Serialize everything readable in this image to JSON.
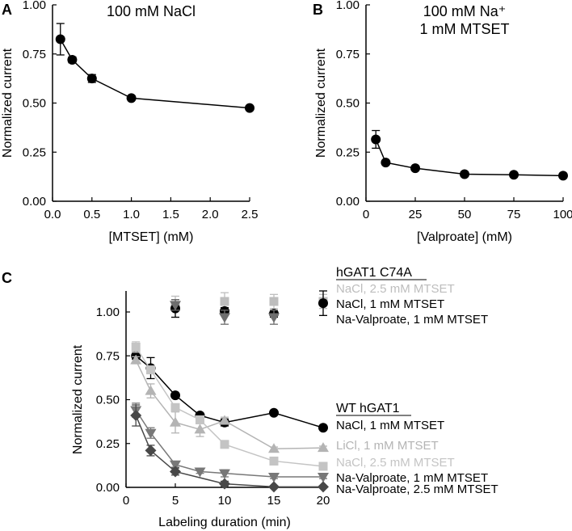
{
  "chart_data": [
    {
      "panel": "A",
      "type": "line",
      "title": "100 mM NaCl",
      "xlabel": "[MTSET] (mM)",
      "ylabel": "Normalized current",
      "xlim": [
        0,
        2.5
      ],
      "ylim": [
        0,
        1.0
      ],
      "xticks": [
        "0.0",
        "0.5",
        "1.0",
        "1.5",
        "2.0",
        "2.5"
      ],
      "xtick_values": [
        0,
        0.5,
        1.0,
        1.5,
        2.0,
        2.5
      ],
      "yticks": [
        "0.00",
        "0.25",
        "0.50",
        "0.75",
        "1.00"
      ],
      "ytick_values": [
        0,
        0.25,
        0.5,
        0.75,
        1.0
      ],
      "series": [
        {
          "name": "NaCl",
          "color": "#000000",
          "marker": "circle",
          "x": [
            0.1,
            0.25,
            0.5,
            1.0,
            2.5
          ],
          "y": [
            0.825,
            0.72,
            0.625,
            0.525,
            0.475
          ],
          "err": [
            0.08,
            0.015,
            0.02,
            0.01,
            0.01
          ]
        }
      ]
    },
    {
      "panel": "B",
      "type": "line",
      "title": "100 mM Na⁺",
      "subtitle": "1 mM MTSET",
      "xlabel": "[Valproate] (mM)",
      "ylabel": "Normalized current",
      "xlim": [
        0,
        100
      ],
      "ylim": [
        0,
        1.0
      ],
      "xticks": [
        "0",
        "25",
        "50",
        "75",
        "100"
      ],
      "xtick_values": [
        0,
        25,
        50,
        75,
        100
      ],
      "yticks": [
        "0.00",
        "0.25",
        "0.50",
        "0.75",
        "1.00"
      ],
      "ytick_values": [
        0,
        0.25,
        0.5,
        0.75,
        1.0
      ],
      "series": [
        {
          "name": "Valproate",
          "color": "#000000",
          "marker": "circle",
          "x": [
            5,
            10,
            25,
            50,
            75,
            100
          ],
          "y": [
            0.315,
            0.197,
            0.168,
            0.138,
            0.135,
            0.13
          ],
          "err": [
            0.045,
            0.01,
            0.01,
            0.008,
            0.01,
            0.012
          ]
        }
      ]
    },
    {
      "panel": "C",
      "type": "line",
      "xlabel": "Labeling duration (min)",
      "ylabel": "Normalized current",
      "xlim": [
        0,
        20
      ],
      "ylim": [
        0,
        1.12
      ],
      "xticks": [
        "0",
        "5",
        "10",
        "15",
        "20"
      ],
      "xtick_values": [
        0,
        5,
        10,
        15,
        20
      ],
      "yticks": [
        "0.00",
        "0.25",
        "0.50",
        "0.75",
        "1.00"
      ],
      "ytick_values": [
        0,
        0.25,
        0.5,
        0.75,
        1.0
      ],
      "legend_groups": [
        {
          "title": "hGAT1 C74A",
          "placement": "top-right",
          "series": [
            {
              "name": "NaCl, 2.5 mM MTSET",
              "color": "#bdbdbd",
              "marker": "square",
              "line": false,
              "x": [
                5,
                10,
                15,
                20
              ],
              "y": [
                1.03,
                1.06,
                1.06,
                1.06
              ],
              "err": [
                0.06,
                0.05,
                0.04,
                0.04
              ]
            },
            {
              "name": "NaCl, 1 mM MTSET",
              "color": "#000000",
              "marker": "circle",
              "line": false,
              "x": [
                5,
                10,
                15,
                20
              ],
              "y": [
                1.02,
                1.005,
                0.99,
                1.05
              ],
              "err": [
                0.05,
                0.02,
                0.02,
                0.07
              ]
            },
            {
              "name": "Na-Valproate, 1 mM MTSET",
              "color": "#6e6e6e",
              "marker": "triangle-down",
              "line": false,
              "x": [
                5,
                10,
                15
              ],
              "y": [
                1.04,
                0.97,
                0.97
              ],
              "err": [
                0.03,
                0.04,
                0.04
              ]
            }
          ]
        },
        {
          "title": "WT hGAT1",
          "placement": "right",
          "series": [
            {
              "name": "NaCl, 1 mM MTSET",
              "color": "#000000",
              "marker": "circle",
              "line": true,
              "x": [
                1,
                2.5,
                5,
                7.5,
                10,
                15,
                20
              ],
              "y": [
                0.75,
                0.68,
                0.525,
                0.41,
                0.37,
                0.425,
                0.34
              ],
              "err": [
                0.02,
                0.06,
                0.01,
                0.01,
                0.02,
                0.01,
                0.01
              ]
            },
            {
              "name": "LiCl, 1 mM MTSET",
              "color": "#b4b4b4",
              "marker": "triangle-up",
              "line": true,
              "x": [
                1,
                2.5,
                5,
                7.5,
                10,
                15,
                20
              ],
              "y": [
                0.725,
                0.55,
                0.37,
                0.33,
                0.38,
                0.22,
                0.225
              ],
              "err": [
                0.02,
                0.04,
                0.06,
                0.04,
                0.02,
                0.01,
                0.01
              ]
            },
            {
              "name": "NaCl, 2.5 mM MTSET",
              "color": "#c4c4c4",
              "marker": "square",
              "line": true,
              "x": [
                1,
                2.5,
                5,
                7.5,
                10,
                15,
                20
              ],
              "y": [
                0.8,
                0.67,
                0.455,
                0.385,
                0.245,
                0.15,
                0.12
              ],
              "err": [
                0.03,
                0.02,
                0.02,
                0.015,
                0.01,
                0.01,
                0.01
              ]
            },
            {
              "name": "Na-Valproate, 1 mM MTSET",
              "color": "#787878",
              "marker": "triangle-down",
              "line": true,
              "x": [
                1,
                2.5,
                5,
                7.5,
                10,
                15,
                20
              ],
              "y": [
                0.44,
                0.31,
                0.13,
                0.09,
                0.08,
                0.06,
                0.06
              ],
              "err": [
                0.04,
                0.03,
                0.015,
                0.01,
                0.02,
                0.01,
                0.01
              ]
            },
            {
              "name": "Na-Valproate, 2.5 mM MTSET",
              "color": "#484848",
              "marker": "diamond",
              "line": true,
              "x": [
                1,
                2.5,
                5,
                10,
                15,
                20
              ],
              "y": [
                0.41,
                0.21,
                0.09,
                0.02,
                0.003,
                0.003
              ],
              "err": [
                0.06,
                0.03,
                0.02,
                0.015,
                0.005,
                0.005
              ]
            }
          ]
        }
      ]
    }
  ],
  "panel_labels": [
    "A",
    "B",
    "C"
  ]
}
